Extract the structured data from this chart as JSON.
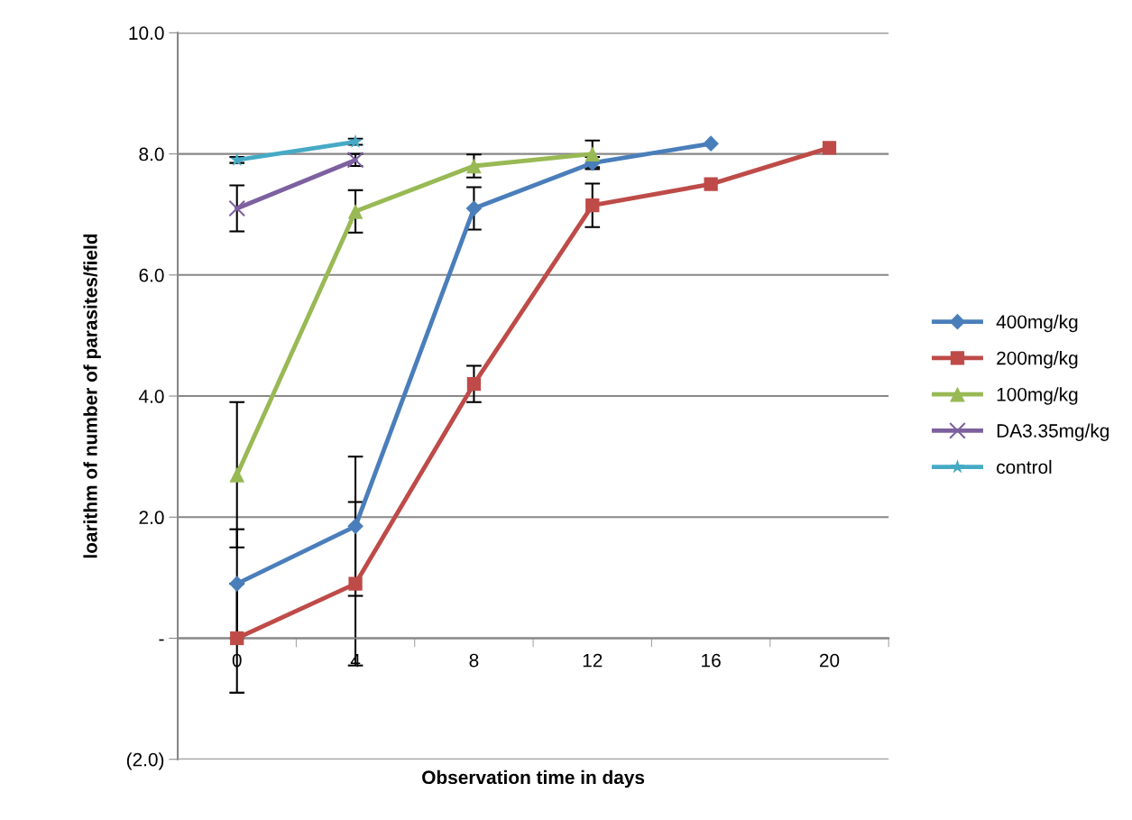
{
  "chart_data": {
    "type": "line",
    "xlabel": "Observation time in days",
    "ylabel": "loarithm of number of parasites/field",
    "categories": [
      "0",
      "4",
      "8",
      "12",
      "16",
      "20"
    ],
    "series": [
      {
        "name": "400mg/kg",
        "color": "#4a7ebb",
        "marker": "diamond",
        "values": [
          0.9,
          1.85,
          7.1,
          7.85,
          8.17,
          null
        ],
        "errors": [
          0.9,
          1.15,
          0.35,
          0.1,
          null,
          null
        ]
      },
      {
        "name": "200mg/kg",
        "color": "#be4b48",
        "marker": "square",
        "values": [
          0.0,
          0.9,
          4.2,
          7.15,
          7.5,
          8.1
        ],
        "errors": [
          0.9,
          1.35,
          0.3,
          0.36,
          null,
          null
        ]
      },
      {
        "name": "100mg/kg",
        "color": "#98b954",
        "marker": "triangle",
        "values": [
          2.7,
          7.05,
          7.8,
          8.0,
          null,
          null
        ],
        "errors": [
          1.2,
          0.35,
          0.19,
          0.22,
          null,
          null
        ]
      },
      {
        "name": "DA3.35mg/kg",
        "color": "#7d60a0",
        "marker": "cross",
        "values": [
          7.1,
          7.9,
          null,
          null,
          null,
          null
        ],
        "errors": [
          0.38,
          0.1,
          null,
          null,
          null,
          null
        ]
      },
      {
        "name": "control",
        "color": "#46aac5",
        "marker": "star",
        "values": [
          7.9,
          8.2,
          null,
          null,
          null,
          null
        ],
        "errors": [
          0.05,
          0.05,
          null,
          null,
          null,
          null
        ]
      }
    ],
    "ylim": [
      -2,
      10
    ],
    "yticks": [
      {
        "value": -2,
        "label": "(2.0)"
      },
      {
        "value": 0,
        "label": "-"
      },
      {
        "value": 2,
        "label": "2.0"
      },
      {
        "value": 4,
        "label": "4.0"
      },
      {
        "value": 6,
        "label": "6.0"
      },
      {
        "value": 8,
        "label": "8.0"
      },
      {
        "value": 10,
        "label": "10.0"
      }
    ],
    "grid": "y",
    "legend": "right",
    "line_style": "solid"
  }
}
